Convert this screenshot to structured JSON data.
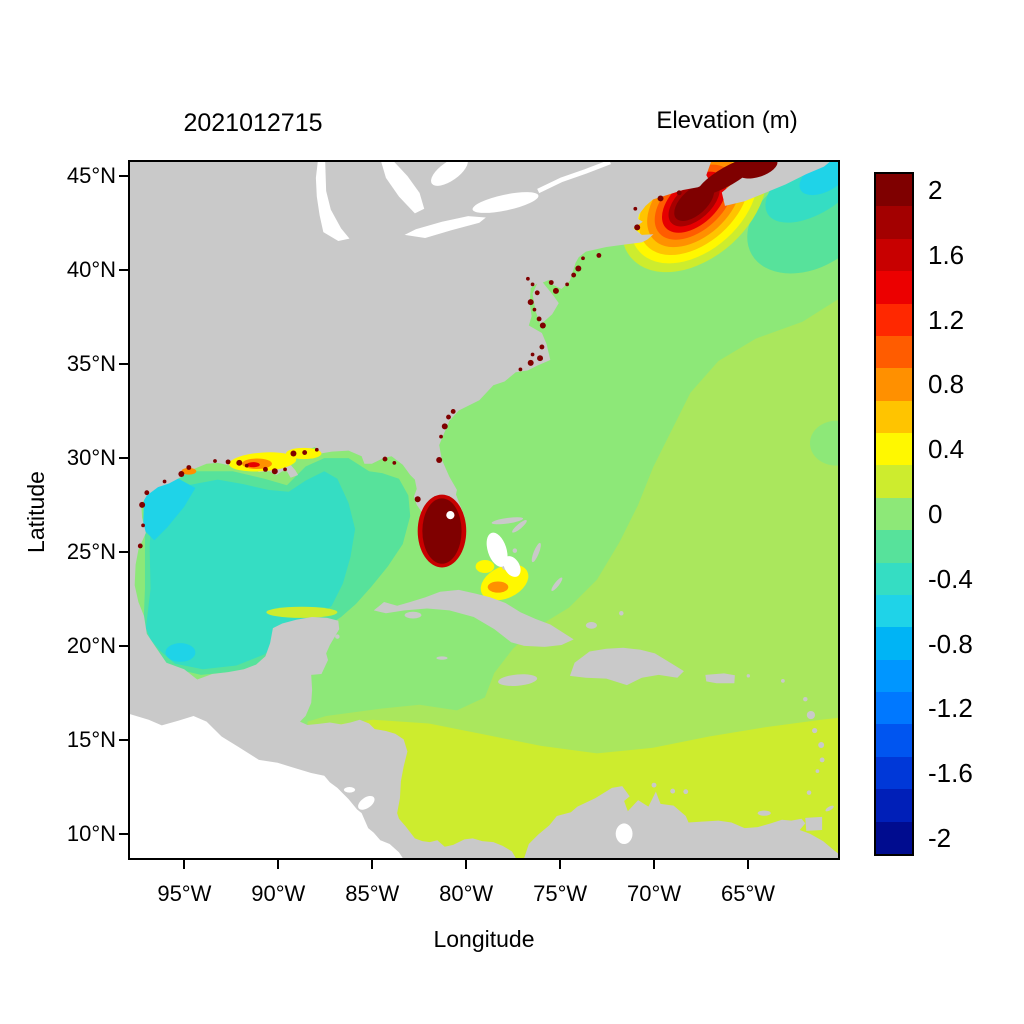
{
  "chart_data": {
    "type": "heatmap",
    "subtype": "filled-contour geographic map of modeled water-surface elevation",
    "title": "2021012715",
    "colorbar_title": "Elevation (m)",
    "xlabel": "Longitude",
    "ylabel": "Latitude",
    "lon_range_deg": [
      -98,
      -60.1
    ],
    "lat_range_deg": [
      8.6,
      45.85
    ],
    "x_ticks": [
      {
        "value": -95,
        "label": "95°W"
      },
      {
        "value": -90,
        "label": "90°W"
      },
      {
        "value": -85,
        "label": "85°W"
      },
      {
        "value": -80,
        "label": "80°W"
      },
      {
        "value": -75,
        "label": "75°W"
      },
      {
        "value": -70,
        "label": "70°W"
      },
      {
        "value": -65,
        "label": "65°W"
      }
    ],
    "y_ticks": [
      {
        "value": 45,
        "label": "45°N"
      },
      {
        "value": 40,
        "label": "40°N"
      },
      {
        "value": 35,
        "label": "35°N"
      },
      {
        "value": 30,
        "label": "30°N"
      },
      {
        "value": 25,
        "label": "25°N"
      },
      {
        "value": 20,
        "label": "20°N"
      },
      {
        "value": 15,
        "label": "15°N"
      },
      {
        "value": 10,
        "label": "10°N"
      }
    ],
    "grid": false,
    "land_color": "#c9c9c9",
    "background_outside_domain": "#ffffff",
    "colorbar": {
      "range": [
        -2.2,
        2.2
      ],
      "tick_labels": [
        "2",
        "1.6",
        "1.2",
        "0.8",
        "0.4",
        "0",
        "-0.4",
        "-0.8",
        "-1.2",
        "-1.6",
        "-2"
      ],
      "cells": [
        {
          "value": 2.0,
          "color": "#7f0000"
        },
        {
          "value": 1.8,
          "color": "#a30000"
        },
        {
          "value": 1.6,
          "color": "#c80000"
        },
        {
          "value": 1.4,
          "color": "#ec0000"
        },
        {
          "value": 1.2,
          "color": "#ff2800"
        },
        {
          "value": 1.0,
          "color": "#ff5c00"
        },
        {
          "value": 0.8,
          "color": "#ff9000"
        },
        {
          "value": 0.6,
          "color": "#ffc400"
        },
        {
          "value": 0.4,
          "color": "#fff800"
        },
        {
          "value": 0.2,
          "color": "#cdec2e"
        },
        {
          "value": 0.0,
          "color": "#8de878"
        },
        {
          "value": -0.2,
          "color": "#57e29b"
        },
        {
          "value": -0.4,
          "color": "#35ddc3"
        },
        {
          "value": -0.6,
          "color": "#1fd3e8"
        },
        {
          "value": -0.8,
          "color": "#00b4f5"
        },
        {
          "value": -1.0,
          "color": "#0096ff"
        },
        {
          "value": -1.2,
          "color": "#0078ff"
        },
        {
          "value": -1.4,
          "color": "#0055f0"
        },
        {
          "value": -1.6,
          "color": "#0038d8"
        },
        {
          "value": -1.8,
          "color": "#001fb8"
        },
        {
          "value": -2.0,
          "color": "#000c8f"
        }
      ]
    },
    "regions": [
      {
        "area": "Bay of Fundy and Gulf of Maine bullseye",
        "elevation_m": "+1.2 to more than +2 (domain maximum)"
      },
      {
        "area": "Atlantic shelf east of Nova Scotia",
        "elevation_m": "-0.6 to -0.2"
      },
      {
        "area": "Open North Atlantic west of ~70W",
        "elevation_m": "0 to +0.2"
      },
      {
        "area": "Central and eastern subtropical Atlantic",
        "elevation_m": "+0.2 to +0.4"
      },
      {
        "area": "Southern Caribbean Sea",
        "elevation_m": "+0.2 to +0.4"
      },
      {
        "area": "Gulf of Mexico interior",
        "elevation_m": "-0.4 to -0.2"
      },
      {
        "area": "Texas shelf",
        "elevation_m": "-0.6 to -0.4"
      },
      {
        "area": "Louisiana coast near Atchafalaya/Mississippi delta",
        "elevation_m": "+0.4 to +1.2"
      },
      {
        "area": "South Florida / Everglades coast",
        "elevation_m": "more than +2"
      },
      {
        "area": "Great Bahama Bank",
        "elevation_m": "+0.4 to +0.8"
      },
      {
        "area": "Scattered coastal estuaries (Chesapeake, Pamlico, Georgia, Texas bays)",
        "elevation_m": "more than +2 (isolated cells)"
      },
      {
        "area": "Land",
        "elevation_m": "masked gray"
      }
    ]
  }
}
